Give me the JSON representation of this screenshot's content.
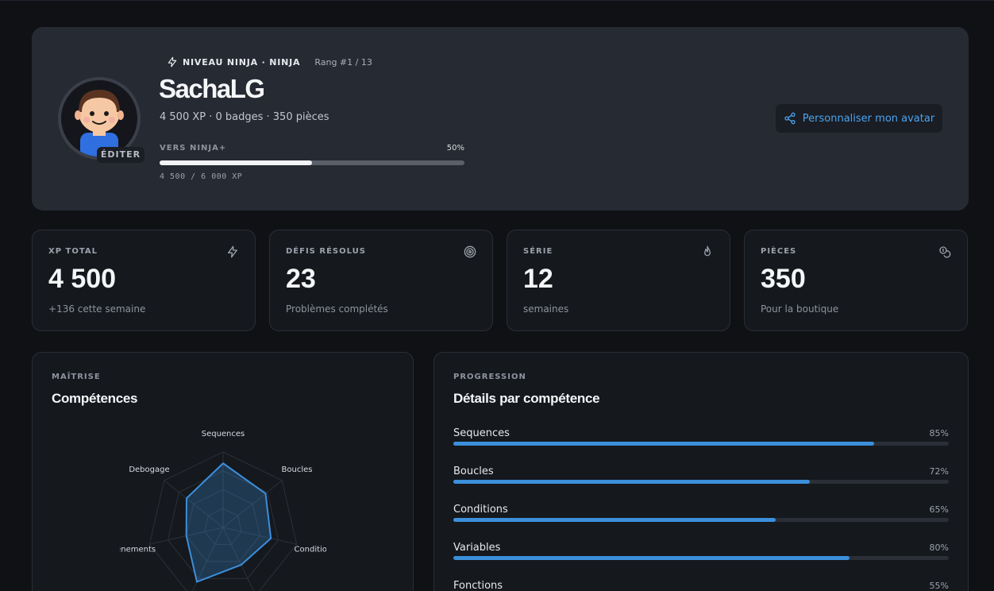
{
  "profile": {
    "level_label": "NIVEAU NINJA · NINJA",
    "rank": "Rang #1 / 13",
    "username": "SachaLG",
    "summary": "4 500 XP · 0 badges · 350 pièces",
    "edit_label": "ÉDITER",
    "next_level_label": "VERS NINJA+",
    "progress_percent_text": "50%",
    "progress_fraction": 0.5,
    "xp_progress_text": "4 500  /  6 000  XP",
    "customize_button": "Personnaliser mon avatar"
  },
  "stats": [
    {
      "label": "XP TOTAL",
      "value": "4 500",
      "sub": "+136 cette semaine",
      "icon": "bolt-icon"
    },
    {
      "label": "DÉFIS RÉSOLUS",
      "value": "23",
      "sub": "Problèmes complétés",
      "icon": "target-icon"
    },
    {
      "label": "SÉRIE",
      "value": "12",
      "sub": "semaines",
      "icon": "flame-icon"
    },
    {
      "label": "PIÈCES",
      "value": "350",
      "sub": "Pour la boutique",
      "icon": "coins-icon"
    }
  ],
  "mastery": {
    "kicker": "MAÎTRISE",
    "title": "Compétences"
  },
  "progression": {
    "kicker": "PROGRESSION",
    "title": "Détails par compétence",
    "skills": [
      {
        "name": "Sequences",
        "pct_text": "85%",
        "value": 85
      },
      {
        "name": "Boucles",
        "pct_text": "72%",
        "value": 72
      },
      {
        "name": "Conditions",
        "pct_text": "65%",
        "value": 65
      },
      {
        "name": "Variables",
        "pct_text": "80%",
        "value": 80
      },
      {
        "name": "Fonctions",
        "pct_text": "55%",
        "value": 55
      }
    ]
  },
  "chart_data": {
    "type": "radar",
    "axes": [
      "Sequences",
      "Boucles",
      "Conditions",
      "Fonctions",
      "Variables",
      "Evenements",
      "Debogage"
    ],
    "visible_axis_labels": [
      "Sequences",
      "Boucles",
      "Conditions",
      "Evenements",
      "Debogage"
    ],
    "values": [
      85,
      72,
      65,
      55,
      80,
      50,
      62
    ],
    "range": [
      0,
      100
    ],
    "color": "#3b8fdb"
  }
}
